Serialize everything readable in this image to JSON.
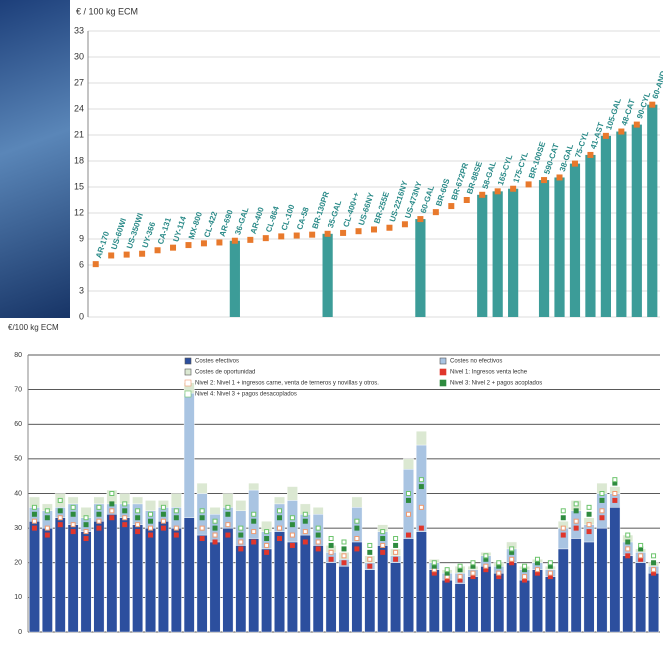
{
  "chart_data": [
    {
      "type": "bar",
      "y_label": "€ / 100 kg ECM",
      "categories": [
        "AR-170",
        "US-60WI",
        "US-350WI",
        "UY-366",
        "CA-131",
        "UY-114",
        "MX-800",
        "CL-422",
        "AR-690",
        "36-GAL",
        "AR-400",
        "CL-864",
        "CL-100",
        "CA-58",
        "BR-130PR",
        "35-GAL",
        "CL-400++",
        "US-66NY",
        "BR-255E",
        "US-2216NY",
        "US-473NY",
        "60-GAL",
        "BR-60S",
        "BR-672PR",
        "BR-88SE",
        "58-GAL",
        "165-CYL",
        "175-CYL",
        "BR-100SE",
        "590-CAT",
        "38-GAL",
        "75-CYL",
        "41-AST",
        "105-GAL",
        "48-CAT",
        "90-CYL",
        "60-AND"
      ],
      "series": [
        {
          "type": "bar",
          "color": "#3c9c98",
          "values": [
            null,
            null,
            null,
            null,
            null,
            null,
            null,
            null,
            null,
            8.8,
            null,
            null,
            null,
            null,
            null,
            9.6,
            null,
            null,
            null,
            null,
            null,
            11.3,
            null,
            null,
            null,
            14.1,
            14.5,
            14.8,
            null,
            15.8,
            16.1,
            17.7,
            18.7,
            20.9,
            21.4,
            22.2,
            24.5
          ]
        },
        {
          "type": "marker",
          "color": "#e8792c",
          "values": [
            6.1,
            7.1,
            7.2,
            7.3,
            7.7,
            8.0,
            8.3,
            8.5,
            8.6,
            8.8,
            8.9,
            9.1,
            9.3,
            9.4,
            9.5,
            9.6,
            9.7,
            9.9,
            10.1,
            10.3,
            10.7,
            11.3,
            12.1,
            12.8,
            13.5,
            14.1,
            14.5,
            14.8,
            15.3,
            15.8,
            16.1,
            17.7,
            18.7,
            20.9,
            21.4,
            22.2,
            24.5
          ]
        }
      ],
      "label_color": "#2a8a88",
      "ylim": [
        0,
        33
      ],
      "yticks": [
        0,
        3,
        6,
        9,
        12,
        15,
        18,
        21,
        24,
        27,
        30,
        33
      ],
      "grid": true
    },
    {
      "type": "stacked_bar",
      "y_label": "€/100 kg ECM",
      "categories": [
        null,
        null,
        null,
        null,
        null,
        null,
        null,
        null,
        null,
        null,
        null,
        null,
        null,
        null,
        null,
        null,
        null,
        null,
        null,
        null,
        null,
        null,
        null,
        null,
        null,
        null,
        null,
        null,
        null,
        null,
        null,
        null,
        null,
        null,
        null,
        null,
        null,
        null,
        null,
        null,
        null,
        null,
        null,
        null,
        null,
        null,
        null,
        null,
        null
      ],
      "series": [
        {
          "name": "Costes efectivos",
          "type": "bar",
          "color": "#2c4f9e",
          "values": [
            32,
            30,
            33,
            31,
            29,
            32,
            34,
            33,
            31,
            30,
            32,
            30,
            33,
            28,
            26,
            30,
            25,
            27,
            24,
            29,
            26,
            28,
            25,
            20,
            19,
            26,
            18,
            25,
            20,
            27,
            29,
            18,
            15,
            14,
            16,
            19,
            17,
            20,
            15,
            18,
            16,
            24,
            27,
            26,
            30,
            36,
            22,
            20,
            17
          ]
        },
        {
          "name": "Costes no efectivos",
          "type": "bar",
          "color": "#a9c4e2",
          "values": [
            4,
            5,
            3,
            6,
            4,
            5,
            3,
            4,
            6,
            5,
            4,
            6,
            36,
            12,
            8,
            6,
            10,
            14,
            5,
            8,
            12,
            6,
            9,
            3,
            2,
            10,
            2,
            4,
            2,
            20,
            25,
            2,
            2,
            3,
            2,
            3,
            2,
            4,
            3,
            2,
            2,
            6,
            8,
            5,
            10,
            4,
            4,
            3,
            2
          ]
        },
        {
          "name": "Costes de oportunidad",
          "type": "bar",
          "color": "#dbe8d2",
          "values": [
            3,
            2,
            4,
            2,
            3,
            2,
            4,
            3,
            2,
            3,
            2,
            4,
            3,
            3,
            2,
            4,
            3,
            2,
            3,
            2,
            4,
            3,
            2,
            2,
            2,
            3,
            2,
            2,
            2,
            3,
            4,
            1,
            1,
            2,
            1,
            1,
            1,
            2,
            1,
            1,
            1,
            2,
            3,
            2,
            3,
            2,
            2,
            1,
            1
          ]
        },
        {
          "name": "Nivel 1: Ingresos venta leche",
          "type": "marker",
          "shape": "filled",
          "color": "#e0362c",
          "values": [
            30,
            28,
            31,
            29,
            27,
            30,
            33,
            31,
            29,
            28,
            30,
            28,
            null,
            27,
            26,
            28,
            24,
            26,
            23,
            27,
            25,
            26,
            24,
            21,
            20,
            24,
            19,
            23,
            21,
            28,
            30,
            17,
            15,
            15,
            16,
            18,
            16,
            20,
            15,
            17,
            16,
            28,
            30,
            29,
            33,
            38,
            22,
            21,
            17
          ]
        },
        {
          "name": "Nivel 2: Nivel 1 + ingresos carne, venta de terneros y novillas y otros.",
          "type": "marker",
          "shape": "open",
          "color": "#f09a70",
          "values": [
            32,
            30,
            33,
            31,
            29,
            32,
            35,
            33,
            31,
            30,
            32,
            30,
            null,
            30,
            28,
            31,
            26,
            29,
            25,
            30,
            28,
            29,
            26,
            23,
            22,
            27,
            21,
            25,
            23,
            34,
            36,
            18,
            16,
            16,
            17,
            19,
            17,
            21,
            16,
            18,
            17,
            30,
            32,
            31,
            35,
            40,
            24,
            22,
            18
          ]
        },
        {
          "name": "Nivel 3: Nivel 2 + pagos acoplados",
          "type": "marker",
          "shape": "filled",
          "color": "#2e8b3e",
          "values": [
            34,
            33,
            35,
            34,
            31,
            34,
            37,
            35,
            33,
            32,
            34,
            33,
            null,
            33,
            30,
            34,
            28,
            32,
            27,
            33,
            31,
            32,
            28,
            25,
            24,
            30,
            23,
            27,
            25,
            38,
            42,
            19,
            17,
            18,
            19,
            21,
            19,
            23,
            18,
            20,
            19,
            33,
            35,
            34,
            38,
            43,
            26,
            24,
            20
          ]
        },
        {
          "name": "Nivel 4: Nivel 3 + pagos desacoplados",
          "type": "marker",
          "shape": "open",
          "color": "#6cc46c",
          "values": [
            36,
            35,
            38,
            36,
            33,
            36,
            40,
            37,
            35,
            34,
            36,
            35,
            null,
            35,
            32,
            36,
            30,
            34,
            29,
            35,
            33,
            34,
            30,
            27,
            26,
            32,
            25,
            29,
            27,
            40,
            44,
            20,
            18,
            19,
            20,
            22,
            20,
            24,
            19,
            21,
            20,
            35,
            37,
            36,
            40,
            44,
            28,
            25,
            22
          ]
        }
      ],
      "ylim": [
        0,
        80
      ],
      "yticks": [
        0,
        10,
        20,
        30,
        40,
        50,
        60,
        70,
        80
      ],
      "grid": true,
      "legend": "top"
    }
  ]
}
